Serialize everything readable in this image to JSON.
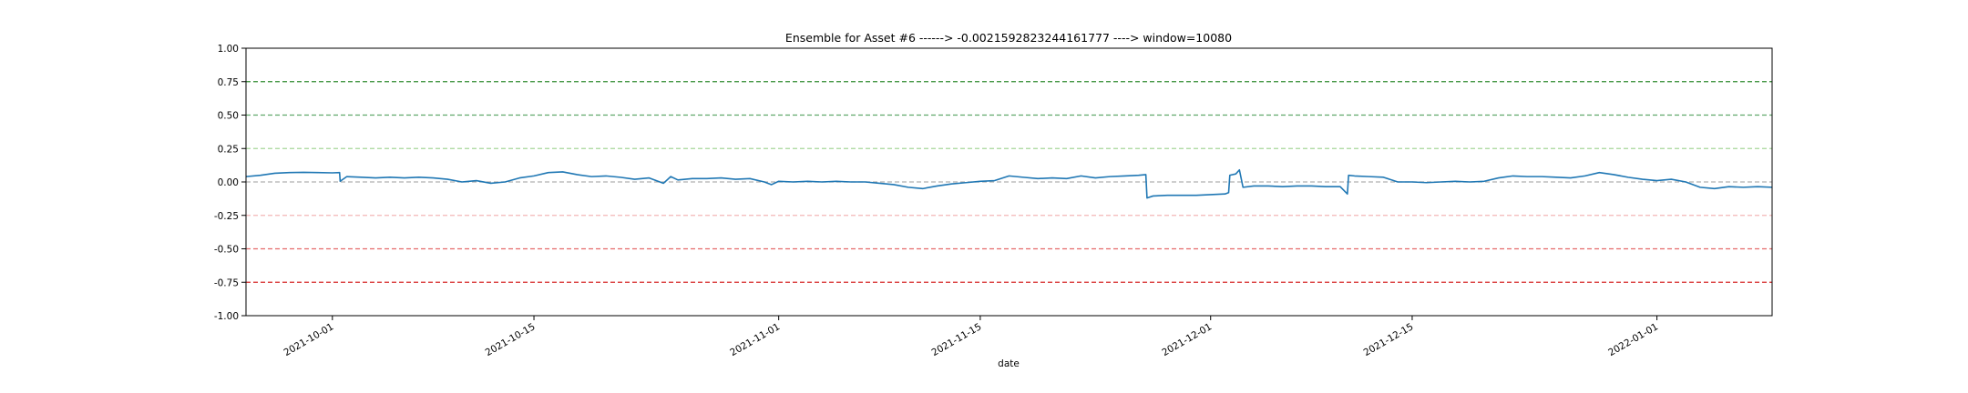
{
  "chart_data": {
    "type": "line",
    "title": "Ensemble for Asset #6 ------> -0.0021592823244161777 ----> window=10080",
    "xlabel": "date",
    "ylabel": "",
    "xlim": [
      "2021-09-25",
      "2022-01-09"
    ],
    "ylim": [
      -1.0,
      1.0
    ],
    "y_ticks": [
      "1.00",
      "0.75",
      "0.50",
      "0.25",
      "0.00",
      "-0.25",
      "-0.50",
      "-0.75",
      "-1.00"
    ],
    "y_tick_values": [
      1.0,
      0.75,
      0.5,
      0.25,
      0.0,
      -0.25,
      -0.5,
      -0.75,
      -1.0
    ],
    "x_ticks": [
      "2021-10-01",
      "2021-10-15",
      "2021-11-01",
      "2021-11-15",
      "2021-12-01",
      "2021-12-15",
      "2022-01-01"
    ],
    "grid": false,
    "reference_lines": [
      {
        "y": 0.75,
        "color": "#2e8b2e"
      },
      {
        "y": 0.5,
        "color": "#5fa86a"
      },
      {
        "y": 0.25,
        "color": "#a6d89a"
      },
      {
        "y": 0.0,
        "color": "#b0b0b0"
      },
      {
        "y": -0.25,
        "color": "#f4b6b6"
      },
      {
        "y": -0.5,
        "color": "#e56a6a"
      },
      {
        "y": -0.75,
        "color": "#d62728"
      }
    ],
    "series": [
      {
        "color": "#1f77b4",
        "points": [
          [
            "2021-09-25",
            0.04
          ],
          [
            "2021-09-26",
            0.05
          ],
          [
            "2021-09-27",
            0.065
          ],
          [
            "2021-09-28",
            0.07
          ],
          [
            "2021-09-29",
            0.072
          ],
          [
            "2021-09-30",
            0.07
          ],
          [
            "2021-10-01",
            0.068
          ],
          [
            "2021-10-01T12:00",
            0.07
          ],
          [
            "2021-10-01T13:00",
            0.005
          ],
          [
            "2021-10-02",
            0.04
          ],
          [
            "2021-10-03",
            0.035
          ],
          [
            "2021-10-04",
            0.03
          ],
          [
            "2021-10-05",
            0.035
          ],
          [
            "2021-10-06",
            0.03
          ],
          [
            "2021-10-07",
            0.035
          ],
          [
            "2021-10-08",
            0.03
          ],
          [
            "2021-10-09",
            0.02
          ],
          [
            "2021-10-10",
            0.0
          ],
          [
            "2021-10-11",
            0.01
          ],
          [
            "2021-10-12",
            -0.01
          ],
          [
            "2021-10-13",
            0.0
          ],
          [
            "2021-10-14",
            0.03
          ],
          [
            "2021-10-15",
            0.045
          ],
          [
            "2021-10-16",
            0.07
          ],
          [
            "2021-10-17",
            0.075
          ],
          [
            "2021-10-18",
            0.055
          ],
          [
            "2021-10-19",
            0.04
          ],
          [
            "2021-10-20",
            0.045
          ],
          [
            "2021-10-21",
            0.035
          ],
          [
            "2021-10-22",
            0.02
          ],
          [
            "2021-10-23",
            0.03
          ],
          [
            "2021-10-24",
            -0.01
          ],
          [
            "2021-10-24T12:00",
            0.04
          ],
          [
            "2021-10-25",
            0.015
          ],
          [
            "2021-10-26",
            0.025
          ],
          [
            "2021-10-27",
            0.025
          ],
          [
            "2021-10-28",
            0.03
          ],
          [
            "2021-10-29",
            0.02
          ],
          [
            "2021-10-30",
            0.025
          ],
          [
            "2021-10-31",
            0.0
          ],
          [
            "2021-10-31T12:00",
            -0.02
          ],
          [
            "2021-11-01",
            0.005
          ],
          [
            "2021-11-02",
            0.0
          ],
          [
            "2021-11-03",
            0.005
          ],
          [
            "2021-11-04",
            0.0
          ],
          [
            "2021-11-05",
            0.005
          ],
          [
            "2021-11-06",
            0.0
          ],
          [
            "2021-11-07",
            0.0
          ],
          [
            "2021-11-08",
            -0.01
          ],
          [
            "2021-11-09",
            -0.02
          ],
          [
            "2021-11-10",
            -0.04
          ],
          [
            "2021-11-11",
            -0.05
          ],
          [
            "2021-11-12",
            -0.03
          ],
          [
            "2021-11-13",
            -0.015
          ],
          [
            "2021-11-14",
            -0.005
          ],
          [
            "2021-11-15",
            0.005
          ],
          [
            "2021-11-16",
            0.01
          ],
          [
            "2021-11-17",
            0.045
          ],
          [
            "2021-11-18",
            0.035
          ],
          [
            "2021-11-19",
            0.025
          ],
          [
            "2021-11-20",
            0.03
          ],
          [
            "2021-11-21",
            0.025
          ],
          [
            "2021-11-22",
            0.045
          ],
          [
            "2021-11-23",
            0.03
          ],
          [
            "2021-11-24",
            0.04
          ],
          [
            "2021-11-25",
            0.045
          ],
          [
            "2021-11-26",
            0.05
          ],
          [
            "2021-11-26T12:00",
            0.055
          ],
          [
            "2021-11-26T14:00",
            -0.12
          ],
          [
            "2021-11-27",
            -0.105
          ],
          [
            "2021-11-28",
            -0.1
          ],
          [
            "2021-11-29",
            -0.1
          ],
          [
            "2021-11-30",
            -0.1
          ],
          [
            "2021-12-01",
            -0.095
          ],
          [
            "2021-12-02",
            -0.09
          ],
          [
            "2021-12-02T06:00",
            -0.08
          ],
          [
            "2021-12-02T08:00",
            0.05
          ],
          [
            "2021-12-02T18:00",
            0.06
          ],
          [
            "2021-12-03",
            0.09
          ],
          [
            "2021-12-03T06:00",
            -0.04
          ],
          [
            "2021-12-04",
            -0.03
          ],
          [
            "2021-12-05",
            -0.03
          ],
          [
            "2021-12-06",
            -0.035
          ],
          [
            "2021-12-07",
            -0.03
          ],
          [
            "2021-12-08",
            -0.03
          ],
          [
            "2021-12-09",
            -0.035
          ],
          [
            "2021-12-10",
            -0.035
          ],
          [
            "2021-12-10T12:00",
            -0.09
          ],
          [
            "2021-12-10T14:00",
            0.05
          ],
          [
            "2021-12-11",
            0.045
          ],
          [
            "2021-12-12",
            0.04
          ],
          [
            "2021-12-13",
            0.035
          ],
          [
            "2021-12-14",
            0.0
          ],
          [
            "2021-12-15",
            0.0
          ],
          [
            "2021-12-16",
            -0.005
          ],
          [
            "2021-12-17",
            0.0
          ],
          [
            "2021-12-18",
            0.005
          ],
          [
            "2021-12-19",
            0.0
          ],
          [
            "2021-12-20",
            0.005
          ],
          [
            "2021-12-21",
            0.03
          ],
          [
            "2021-12-22",
            0.045
          ],
          [
            "2021-12-23",
            0.04
          ],
          [
            "2021-12-24",
            0.04
          ],
          [
            "2021-12-25",
            0.035
          ],
          [
            "2021-12-26",
            0.03
          ],
          [
            "2021-12-27",
            0.045
          ],
          [
            "2021-12-28",
            0.07
          ],
          [
            "2021-12-29",
            0.055
          ],
          [
            "2021-12-30",
            0.035
          ],
          [
            "2021-12-31",
            0.02
          ],
          [
            "2022-01-01",
            0.01
          ],
          [
            "2022-01-02",
            0.02
          ],
          [
            "2022-01-03",
            0.0
          ],
          [
            "2022-01-04",
            -0.04
          ],
          [
            "2022-01-05",
            -0.05
          ],
          [
            "2022-01-06",
            -0.035
          ],
          [
            "2022-01-07",
            -0.04
          ],
          [
            "2022-01-08",
            -0.035
          ],
          [
            "2022-01-09",
            -0.04
          ]
        ]
      }
    ]
  }
}
